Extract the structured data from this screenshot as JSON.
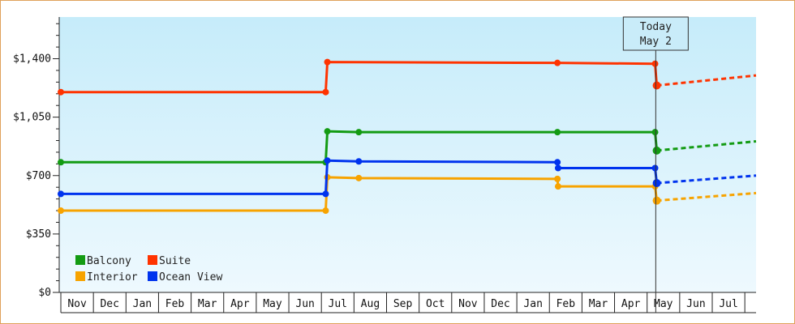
{
  "chart_data": {
    "type": "line",
    "subtype": "step",
    "x_categories": [
      "Nov",
      "Dec",
      "Jan",
      "Feb",
      "Mar",
      "Apr",
      "May",
      "Jun",
      "Jul",
      "Aug",
      "Sep",
      "Oct",
      "Nov",
      "Dec",
      "Jan",
      "Feb",
      "Mar",
      "Apr",
      "May",
      "Jun",
      "Jul"
    ],
    "yticks": [
      "$0",
      "$350",
      "$700",
      "$1,050",
      "$1,400"
    ],
    "ylim": [
      0,
      1650
    ],
    "grid": false,
    "legend_position": "bottom-left",
    "today_marker": {
      "line1": "Today",
      "line2": "May 2",
      "x": 17.97
    },
    "series": [
      {
        "name": "Balcony",
        "color": "#139b13",
        "points": [
          [
            0,
            780
          ],
          [
            8,
            780
          ],
          [
            8.05,
            965
          ],
          [
            9,
            960
          ],
          [
            15,
            960
          ],
          [
            17.95,
            960
          ],
          [
            18,
            850
          ]
        ],
        "forecast": [
          [
            18,
            850
          ],
          [
            21,
            905
          ]
        ]
      },
      {
        "name": "Suite",
        "color": "#ff3300",
        "points": [
          [
            0,
            1200
          ],
          [
            8,
            1200
          ],
          [
            8.05,
            1380
          ],
          [
            15,
            1375
          ],
          [
            17.95,
            1370
          ],
          [
            18,
            1240
          ]
        ],
        "forecast": [
          [
            18,
            1240
          ],
          [
            21,
            1300
          ]
        ]
      },
      {
        "name": "Interior",
        "color": "#f7a300",
        "points": [
          [
            0,
            490
          ],
          [
            8,
            490
          ],
          [
            8.05,
            690
          ],
          [
            9,
            685
          ],
          [
            15,
            680
          ],
          [
            15.02,
            635
          ],
          [
            17.95,
            635
          ],
          [
            18,
            550
          ]
        ],
        "forecast": [
          [
            18,
            550
          ],
          [
            21,
            595
          ]
        ]
      },
      {
        "name": "Ocean View",
        "color": "#0033ee",
        "points": [
          [
            0,
            590
          ],
          [
            8,
            590
          ],
          [
            8.05,
            790
          ],
          [
            9,
            785
          ],
          [
            15,
            780
          ],
          [
            15.02,
            745
          ],
          [
            17.95,
            745
          ],
          [
            18,
            655
          ]
        ],
        "forecast": [
          [
            18,
            655
          ],
          [
            21,
            700
          ]
        ]
      }
    ],
    "colors": {
      "plot_top": "#c6ecfa",
      "plot_bottom": "#eef9fe",
      "frame": "#e0a15a"
    }
  }
}
